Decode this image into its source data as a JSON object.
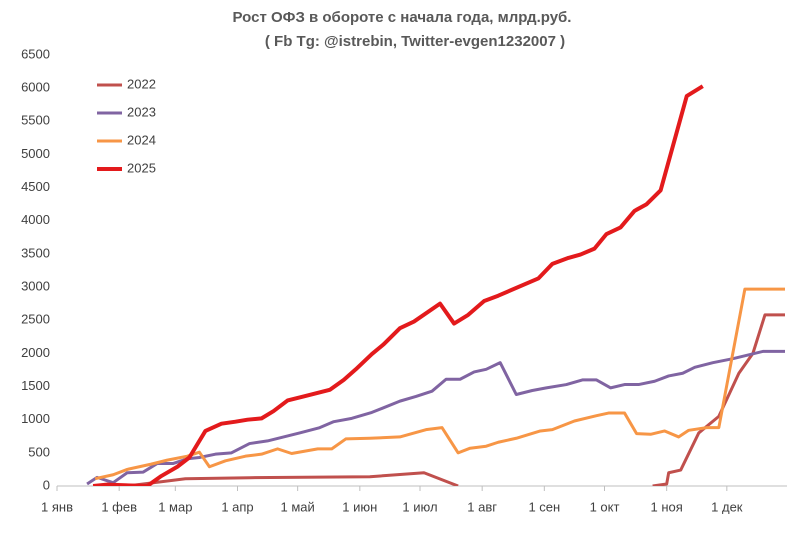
{
  "chart_data": {
    "type": "line",
    "title": "Рост ОФЗ в обороте с начала года, млрд.руб.",
    "subtitle": "( Fb Tg: @istrebin, Twitter-evgen1232007 )",
    "xlim": [
      0,
      364
    ],
    "xticks": [
      {
        "value": 0,
        "label": "1 янв"
      },
      {
        "value": 31,
        "label": "1 фев"
      },
      {
        "value": 59,
        "label": "1 мар"
      },
      {
        "value": 90,
        "label": "1 апр"
      },
      {
        "value": 120,
        "label": "1 май"
      },
      {
        "value": 151,
        "label": "1 июн"
      },
      {
        "value": 181,
        "label": "1 июл"
      },
      {
        "value": 212,
        "label": "1 авг"
      },
      {
        "value": 243,
        "label": "1 сен"
      },
      {
        "value": 273,
        "label": "1 окт"
      },
      {
        "value": 304,
        "label": "1 ноя"
      },
      {
        "value": 334,
        "label": "1 дек"
      }
    ],
    "ylim": [
      0,
      6500
    ],
    "yticks": [
      0,
      500,
      1000,
      1500,
      2000,
      2500,
      3000,
      3500,
      4000,
      4500,
      5000,
      5500,
      6000,
      6500
    ],
    "grid": false,
    "legend": "upper-left",
    "series": [
      {
        "name": "2022",
        "color": "#c0504d",
        "width": 3,
        "x": [
          35,
          64,
          96,
          156,
          183,
          200,
          250,
          297,
          304,
          305,
          311,
          320,
          330,
          340,
          347,
          353,
          363
        ],
        "values": [
          0,
          110,
          125,
          140,
          200,
          0,
          null,
          0,
          30,
          200,
          240,
          800,
          1050,
          1700,
          2000,
          2580,
          2580
        ]
      },
      {
        "name": "2023",
        "color": "#8064a2",
        "width": 3,
        "x": [
          15,
          20,
          28,
          35,
          43,
          50,
          58,
          65,
          71,
          79,
          87,
          96,
          105,
          121,
          131,
          138,
          147,
          157,
          162,
          171,
          179,
          187,
          194,
          201,
          208,
          214,
          221,
          229,
          237,
          244,
          254,
          262,
          269,
          276,
          283,
          290,
          298,
          305,
          312,
          318,
          327,
          337,
          352,
          363
        ],
        "values": [
          30,
          130,
          50,
          200,
          210,
          340,
          340,
          410,
          430,
          480,
          500,
          640,
          680,
          800,
          880,
          970,
          1020,
          1110,
          1170,
          1280,
          1350,
          1430,
          1610,
          1610,
          1720,
          1760,
          1860,
          1380,
          1440,
          1480,
          1530,
          1600,
          1600,
          1480,
          1530,
          1530,
          1580,
          1660,
          1700,
          1790,
          1860,
          1920,
          2030,
          2030
        ]
      },
      {
        "name": "2024",
        "color": "#f79646",
        "width": 3,
        "x": [
          19,
          28,
          35,
          47,
          55,
          65,
          71,
          76,
          84,
          94,
          102,
          110,
          117,
          130,
          137,
          144,
          156,
          171,
          184,
          192,
          200,
          206,
          214,
          220,
          229,
          241,
          247,
          258,
          269,
          275,
          283,
          289,
          296,
          303,
          310,
          315,
          324,
          330,
          343,
          363
        ],
        "values": [
          110,
          170,
          250,
          330,
          390,
          450,
          510,
          290,
          380,
          450,
          480,
          560,
          490,
          560,
          560,
          710,
          720,
          740,
          850,
          880,
          500,
          570,
          600,
          660,
          720,
          830,
          850,
          980,
          1060,
          1100,
          1100,
          790,
          780,
          830,
          740,
          840,
          880,
          880,
          2970,
          2970
        ]
      },
      {
        "name": "2025",
        "color": "#e31a1c",
        "width": 4,
        "x": [
          18,
          25,
          45,
          52,
          60,
          66,
          74,
          82,
          89,
          95,
          102,
          108,
          115,
          123,
          136,
          143,
          149,
          157,
          163,
          171,
          178,
          191,
          198,
          205,
          213,
          220,
          240,
          247,
          255,
          261,
          268,
          274,
          281,
          288,
          294,
          301,
          314,
          322
        ],
        "values": [
          0,
          20,
          0,
          150,
          290,
          430,
          830,
          940,
          970,
          1000,
          1020,
          1130,
          1290,
          1350,
          1450,
          1600,
          1760,
          1990,
          2140,
          2380,
          2480,
          2750,
          2450,
          2580,
          2790,
          2870,
          3130,
          3350,
          3440,
          3490,
          3580,
          3800,
          3900,
          4150,
          4250,
          4460,
          5880,
          6030
        ]
      }
    ]
  }
}
